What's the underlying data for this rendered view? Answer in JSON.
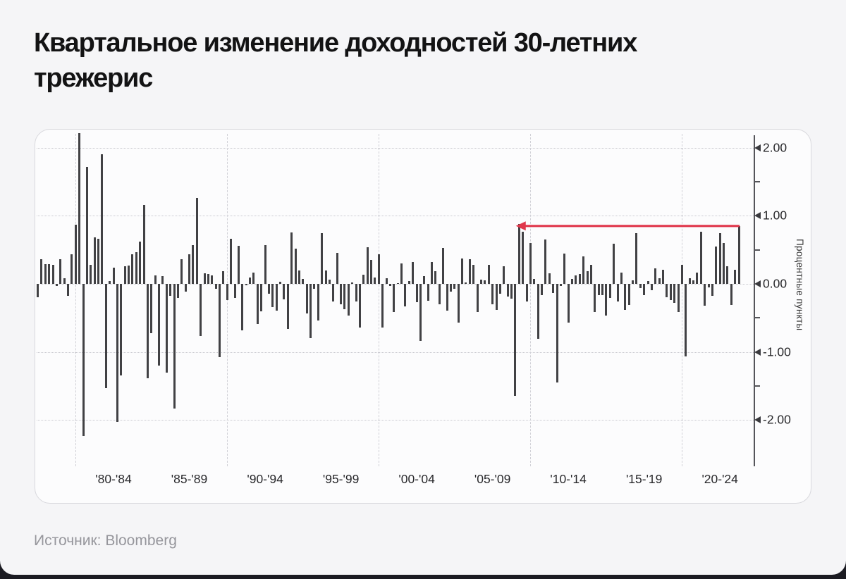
{
  "page": {
    "title": "Квартальное изменение доходностей 30-летних трежерис",
    "source": "Источник: Bloomberg"
  },
  "colors": {
    "bar": "#414144",
    "annotation_arrow": "#e0374b",
    "axis_line": "#55555a",
    "grid": "#c9c9cf",
    "panel_background": "#fcfcfd",
    "page_background": "#f5f5f7",
    "title_text": "#131314",
    "source_text": "#96969c"
  },
  "chart_data": {
    "type": "bar",
    "title": "Квартальное изменение доходностей 30-летних трежерис",
    "ylabel": "Процентные пункты",
    "xlabel": "",
    "frequency": "quarterly",
    "start_quarter": "1977-Q2",
    "end_quarter": "2023-Q3",
    "ylim": [
      -2.65,
      2.25
    ],
    "grid": "horizontal dotted at major y ticks, vertical dashed at decade boundaries",
    "legend": "none",
    "y_major_ticks": {
      "values": [
        2,
        1,
        0,
        -1,
        -2
      ],
      "labels": [
        "2.00",
        "1.00",
        "0.00",
        "-1.00",
        "-2.00"
      ]
    },
    "y_minor_ticks": [
      1.5,
      0.5,
      -0.5,
      -1.5
    ],
    "x_tick_labels": [
      "'80-'84",
      "'85-'89",
      "'90-'94",
      "'95-'99",
      "'00-'04",
      "'05-'09",
      "'10-'14",
      "'15-'19",
      "'20-'24"
    ],
    "x_gridline_years": [
      1980,
      1990,
      2000,
      2010,
      2020
    ],
    "values": [
      -0.2,
      0.36,
      0.29,
      0.29,
      0.28,
      -0.03,
      0.36,
      0.08,
      -0.18,
      0.43,
      0.87,
      2.21,
      -2.23,
      1.72,
      0.28,
      0.68,
      0.66,
      1.9,
      -1.53,
      0.04,
      0.24,
      -2.03,
      -1.34,
      0.26,
      0.27,
      0.43,
      0.47,
      0.62,
      1.16,
      -1.39,
      -0.72,
      0.12,
      -1.2,
      0.11,
      -1.3,
      -0.18,
      -1.83,
      -0.21,
      0.36,
      -0.11,
      0.43,
      0.57,
      1.26,
      -0.76,
      0.16,
      0.15,
      0.12,
      -0.07,
      -1.07,
      0.19,
      -0.24,
      0.66,
      -0.21,
      0.56,
      -0.68,
      -0.02,
      0.09,
      0.17,
      -0.59,
      -0.4,
      0.57,
      -0.14,
      -0.34,
      -0.39,
      0.03,
      -0.23,
      -0.66,
      0.76,
      0.52,
      0.2,
      0.07,
      -0.43,
      -0.8,
      -0.07,
      -0.54,
      0.74,
      0.2,
      0.06,
      -0.26,
      0.46,
      -0.3,
      -0.37,
      -0.47,
      0.02,
      -0.26,
      -0.64,
      0.13,
      0.54,
      0.35,
      0.09,
      0.43,
      -0.64,
      0.08,
      -0.03,
      -0.41,
      0.01,
      0.3,
      -0.33,
      0.04,
      0.32,
      -0.27,
      -0.84,
      0.11,
      -0.25,
      0.32,
      0.19,
      -0.3,
      0.53,
      -0.39,
      -0.11,
      -0.07,
      -0.57,
      0.37,
      0.02,
      0.36,
      0.28,
      -0.41,
      0.06,
      0.05,
      0.28,
      -0.3,
      -0.38,
      -0.14,
      0.26,
      -0.19,
      -0.22,
      -1.64,
      0.88,
      0.77,
      -0.26,
      0.6,
      0.07,
      -0.81,
      -0.17,
      0.65,
      0.16,
      -0.13,
      -1.45,
      -0.03,
      0.45,
      -0.57,
      0.07,
      0.12,
      0.15,
      0.4,
      0.19,
      0.28,
      -0.41,
      -0.16,
      -0.16,
      -0.46,
      -0.21,
      0.59,
      -0.26,
      0.17,
      -0.38,
      -0.31,
      0.05,
      0.75,
      -0.06,
      -0.16,
      0.04,
      -0.09,
      0.23,
      0.08,
      0.21,
      -0.2,
      -0.24,
      -0.28,
      -0.41,
      0.28,
      -1.06,
      0.08,
      0.05,
      0.17,
      0.77,
      -0.32,
      -0.05,
      -0.18,
      0.55,
      0.74,
      0.6,
      0.26,
      -0.31,
      0.21,
      0.85
    ],
    "annotation": {
      "shape": "horizontal-arrow-pointing-left",
      "color": "#e0374b",
      "from_quarter": "2023-Q3",
      "from_index": 185,
      "to_quarter": "2009-Q1",
      "to_index": 127,
      "y_value": 0.85
    }
  }
}
